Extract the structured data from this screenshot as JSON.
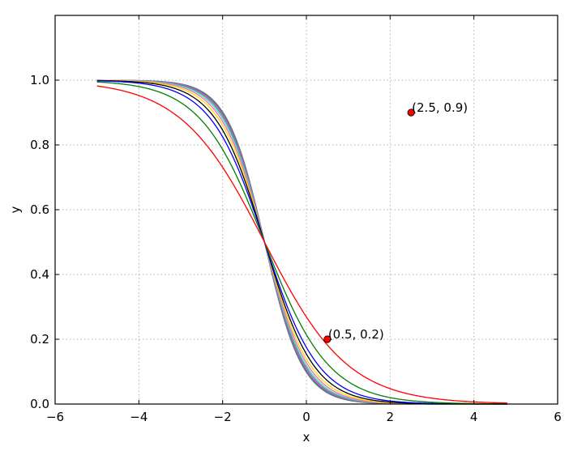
{
  "chart_data": {
    "type": "line",
    "title": "",
    "xlabel": "x",
    "ylabel": "y",
    "xlim": [
      -6,
      6
    ],
    "ylim": [
      0,
      1.2
    ],
    "grid": true,
    "xticks": [
      -6,
      -4,
      -2,
      0,
      2,
      4,
      6
    ],
    "xtick_labels": [
      "−6",
      "−4",
      "−2",
      "0",
      "2",
      "4",
      "6"
    ],
    "yticks": [
      0,
      0.2,
      0.4,
      0.6,
      0.8,
      1.0
    ],
    "ytick_labels": [
      "0.0",
      "0.2",
      "0.4",
      "0.6",
      "0.8",
      "1.0"
    ],
    "function": "y = 1 / (1 + exp(k * (x + 1))), x from -5 to 4.8",
    "x_range": [
      -5,
      4.8
    ],
    "center": -1,
    "series": [
      {
        "k": 1.0,
        "color": "#ff0000"
      },
      {
        "k": 1.3,
        "color": "#008000"
      },
      {
        "k": 1.55,
        "color": "#0000ff"
      },
      {
        "k": 1.7,
        "color": "#000000"
      },
      {
        "k": 1.82,
        "color": "#ffd700"
      },
      {
        "k": 1.92,
        "color": "#ff69b4"
      },
      {
        "k": 2.0,
        "color": "#40e0d0"
      },
      {
        "k": 2.07,
        "color": "#808080"
      },
      {
        "k": 2.13,
        "color": "#9370db"
      },
      {
        "k": 2.18,
        "color": "#696969"
      },
      {
        "k": 2.22,
        "color": "#708090"
      }
    ],
    "annotations": [
      {
        "x": 0.5,
        "y": 0.2,
        "label": "(0.5, 0.2)",
        "color": "#ff0000"
      },
      {
        "x": 2.5,
        "y": 0.9,
        "label": "(2.5, 0.9)",
        "color": "#ff0000"
      }
    ]
  }
}
